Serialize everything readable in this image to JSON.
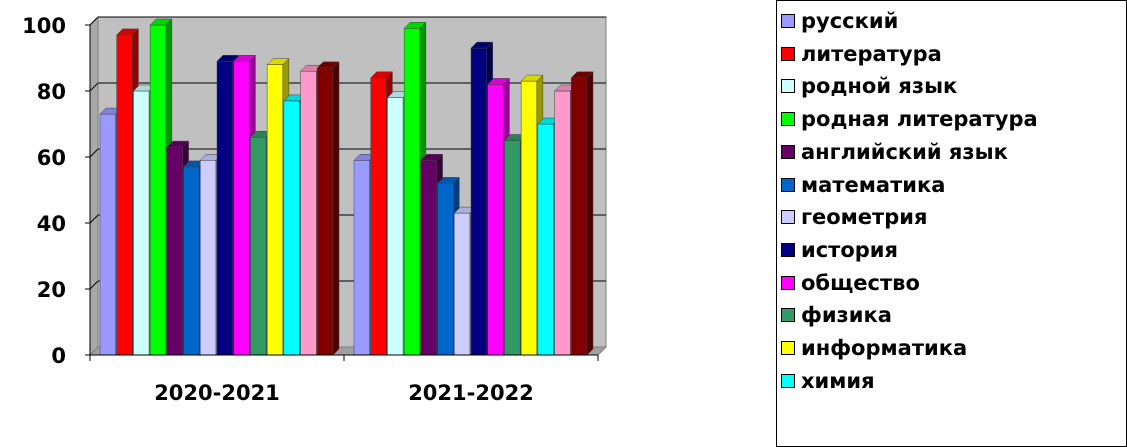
{
  "chart_data": {
    "type": "bar",
    "categories": [
      "2020-2021",
      "2021-2022"
    ],
    "ylim": [
      0,
      100
    ],
    "yticks": [
      0,
      20,
      40,
      60,
      80,
      100
    ],
    "grid": true,
    "legend_position": "right",
    "series": [
      {
        "name": "русский",
        "color": "#9999FF",
        "values": [
          73,
          59
        ]
      },
      {
        "name": "литература",
        "color": "#FF0000",
        "values": [
          97,
          84
        ]
      },
      {
        "name": "родной язык",
        "color": "#CCFFFF",
        "values": [
          80,
          78
        ]
      },
      {
        "name": "родная литература",
        "color": "#00FF00",
        "values": [
          100,
          99
        ]
      },
      {
        "name": "английский язык",
        "color": "#660066",
        "values": [
          63,
          59
        ]
      },
      {
        "name": "математика",
        "color": "#0066CC",
        "values": [
          57,
          52
        ]
      },
      {
        "name": "геометрия",
        "color": "#CCCCFF",
        "values": [
          59,
          43
        ]
      },
      {
        "name": "история",
        "color": "#000080",
        "values": [
          89,
          93
        ]
      },
      {
        "name": "общество",
        "color": "#FF00FF",
        "values": [
          89,
          82
        ]
      },
      {
        "name": "физика",
        "color": "#339966",
        "values": [
          66,
          65
        ]
      },
      {
        "name": "информатика",
        "color": "#FFFF00",
        "values": [
          88,
          83
        ]
      },
      {
        "name": "химия",
        "color": "#00FFFF",
        "values": [
          77,
          70
        ]
      },
      {
        "name": "",
        "color": "#FF99CC",
        "values": [
          86,
          80
        ]
      },
      {
        "name": "",
        "color": "#800000",
        "values": [
          87,
          84
        ]
      }
    ]
  }
}
